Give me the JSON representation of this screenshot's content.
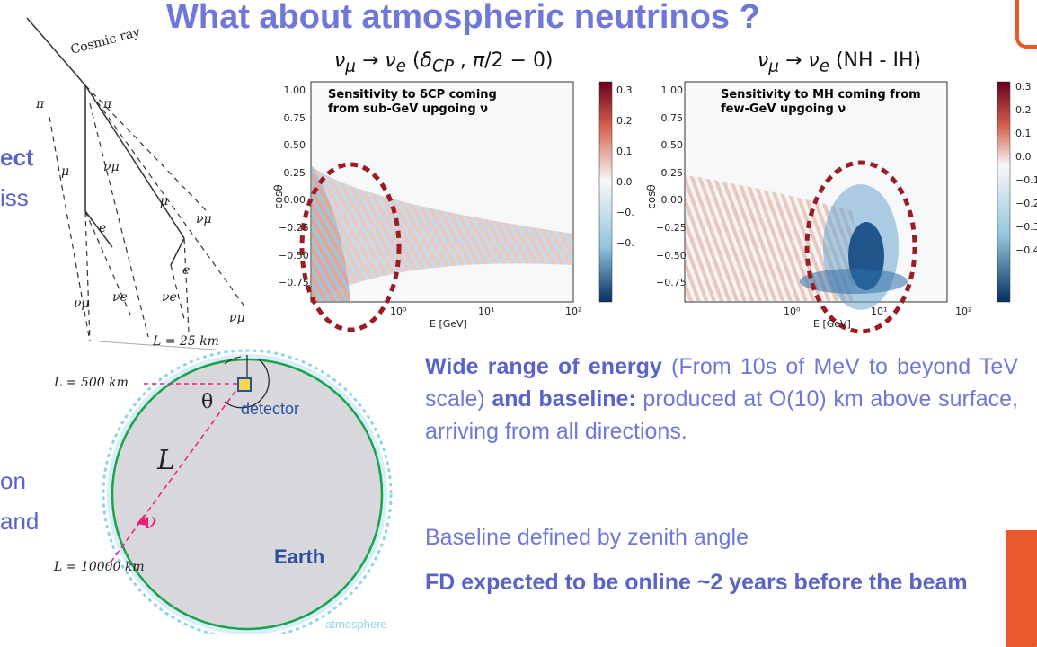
{
  "title": "What about atmospheric neutrinos ?",
  "left_fragments": [
    "ect",
    "iss",
    "on",
    "and"
  ],
  "shower_diagram": {
    "cosmic_ray": "Cosmic ray",
    "pi": "π",
    "mu": "μ",
    "e": "e",
    "nu_mu": "νμ",
    "nu_e": "νe",
    "l25": "L = 25 km"
  },
  "earth_diagram": {
    "l500": "L = 500 km",
    "l10000": "L = 10000 km",
    "theta": "θ",
    "detector": "detector",
    "L": "L",
    "nu": "ν",
    "earth": "Earth",
    "atmosphere": "atmosphere",
    "colors": {
      "earth_fill": "#d8d8dc",
      "orbit": "#19a34a",
      "atmosphere": "#8fd3ec",
      "path": "#e8207a",
      "label": "#2c4fa3"
    }
  },
  "plot1": {
    "title_html": "<i>ν<sub>μ</sub></i> → <i>ν<sub>e</sub></i> (<i>δ<sub>CP</sub></i> , <i>π</i>/2 − 0)",
    "annotation_line1": "Sensitivity to δCP coming",
    "annotation_line2": "from sub-GeV upgoing ν",
    "ylabel": "cosθ",
    "xlabel": "E [GeV]",
    "yticks": [
      "1.00",
      "0.75",
      "0.50",
      "0.25",
      "0.00",
      "−0.25",
      "−0.50",
      "−0.75"
    ],
    "xticks": [
      "10⁰",
      "10¹",
      "10²"
    ],
    "cbar_ticks": [
      "0.3",
      "0.2",
      "0.1",
      "0.0",
      "−0.",
      "−0."
    ]
  },
  "plot2": {
    "title_html": "<i>ν<sub>μ</sub></i> → <i>ν<sub>e</sub></i> (NH - IH)",
    "annotation_line1": "Sensitivity to MH coming from",
    "annotation_line2": "few-GeV upgoing ν",
    "ylabel": "cosθ",
    "xlabel": "E [GeV]",
    "yticks": [
      "1.00",
      "0.75",
      "0.50",
      "0.25",
      "0.00",
      "−0.25",
      "−0.50",
      "−0.75"
    ],
    "xticks": [
      "10⁰",
      "10¹",
      "10²"
    ],
    "cbar_ticks": [
      "0.3",
      "0.2",
      "0.1",
      "0.0",
      "−0.1",
      "−0.2",
      "−0.3",
      "−0.4"
    ]
  },
  "text": {
    "p1_b1": "Wide range of energy",
    "p1_t1": " (From 10s of MeV to beyond TeV scale) ",
    "p1_b2": "and baseline:",
    "p1_t2": " produced at O(10) km above surface, arriving from all directions.",
    "p2": "Baseline defined by zenith angle",
    "p3": "FD expected to be online ~2 years before the beam"
  },
  "colors": {
    "title": "#6f78d9",
    "accent_dark": "#5a63c8",
    "ellipse": "#9b1c24",
    "corner": "#e95a2b"
  }
}
